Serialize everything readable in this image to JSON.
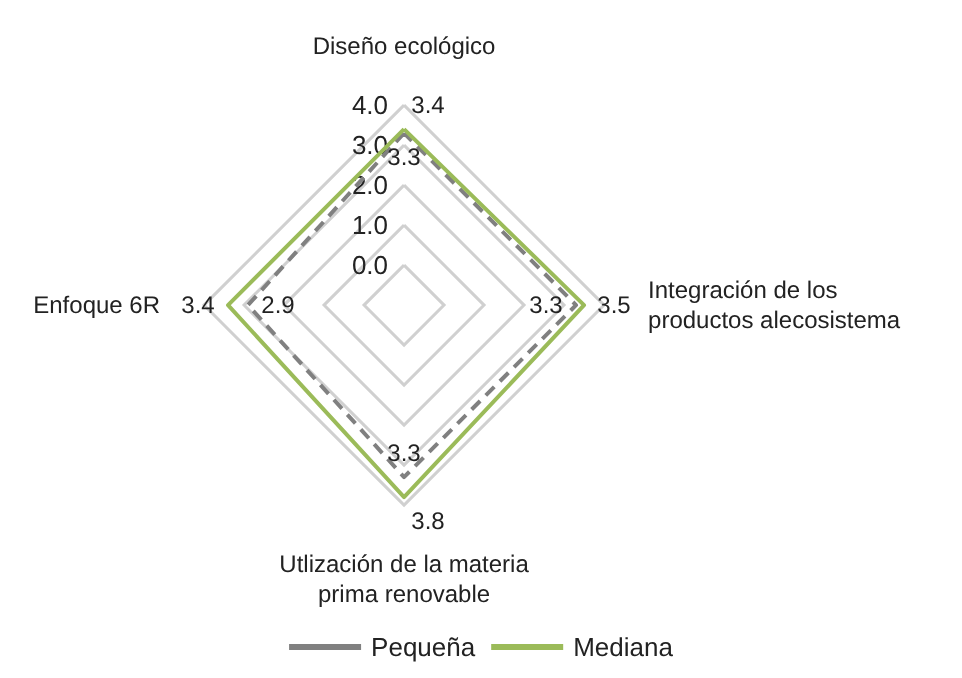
{
  "chart_data": {
    "type": "radar",
    "categories": [
      "Diseño ecológico",
      "Integración de los productos alecosistema",
      "Utlización de la materia prima renovable",
      "Enfoque 6R"
    ],
    "series": [
      {
        "name": "Pequeña",
        "color": "#808080",
        "line_style": "dashed",
        "values": [
          3.3,
          3.3,
          3.3,
          2.9
        ]
      },
      {
        "name": "Mediana",
        "color": "#9bbb59",
        "line_style": "solid",
        "values": [
          3.4,
          3.5,
          3.8,
          3.4
        ]
      }
    ],
    "ylim": [
      -1,
      4
    ],
    "yticks": [
      {
        "value": 0,
        "label": "0.0"
      },
      {
        "value": 1,
        "label": "1.0"
      },
      {
        "value": 2,
        "label": "2.0"
      },
      {
        "value": 3,
        "label": "3.0"
      },
      {
        "value": 4,
        "label": "4.0"
      }
    ],
    "grid": true,
    "legend": "bottom",
    "marker": "none",
    "data_labels": true
  }
}
